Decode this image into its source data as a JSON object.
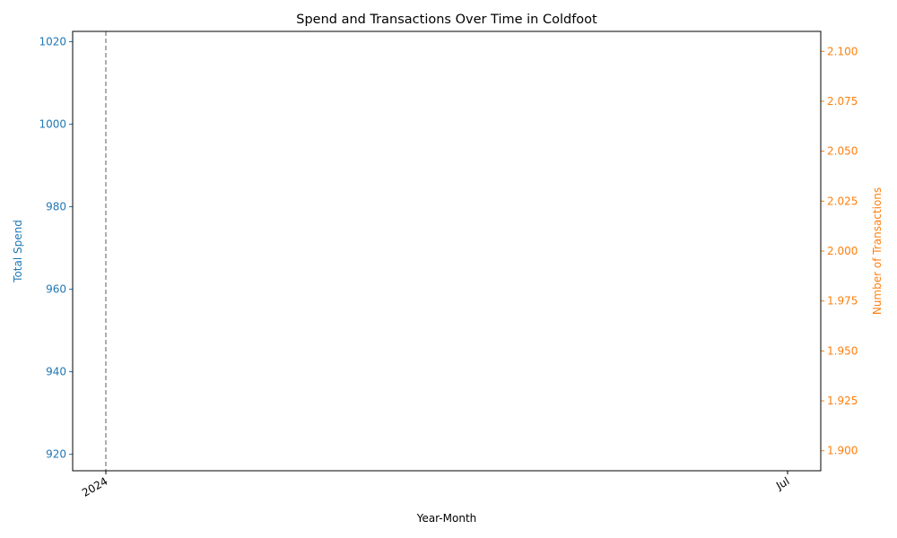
{
  "chart_data": {
    "type": "line",
    "title": "Spend and Transactions Over Time in Coldfoot",
    "xlabel": "Year-Month",
    "x_ticks": [
      "2024",
      "Jul"
    ],
    "x_range": [
      "2024-01",
      "2024-07"
    ],
    "marker_line_x": "2024-01",
    "left_axis": {
      "label": "Total Spend",
      "color": "#1f77b4",
      "range": [
        916,
        1022.5
      ],
      "ticks": [
        920,
        940,
        960,
        980,
        1000,
        1020
      ]
    },
    "right_axis": {
      "label": "Number of Transactions",
      "color": "#ff7f0e",
      "range": [
        1.89,
        2.11
      ],
      "ticks": [
        1.9,
        1.925,
        1.95,
        1.975,
        2.0,
        2.025,
        2.05,
        2.075,
        2.1
      ],
      "tick_labels": [
        "1.900",
        "1.925",
        "1.950",
        "1.975",
        "2.000",
        "2.025",
        "2.050",
        "2.075",
        "2.100"
      ]
    },
    "series": [
      {
        "axis": "left",
        "color": "#1f77b4",
        "points": []
      },
      {
        "axis": "right",
        "color": "#ff7f0e",
        "points": []
      }
    ],
    "grid": false
  }
}
